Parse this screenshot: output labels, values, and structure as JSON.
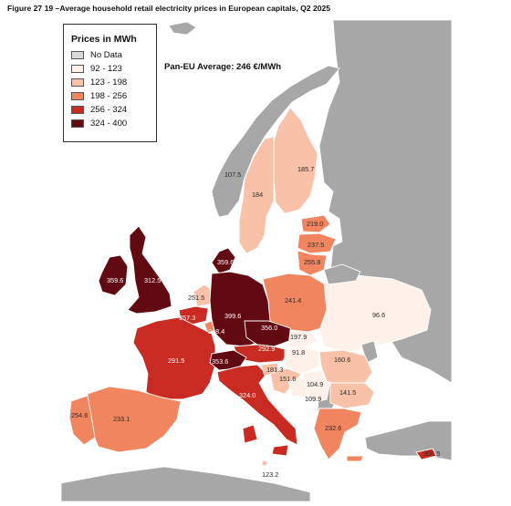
{
  "figure": {
    "title": "Figure 27 19 –Average household retail electricity prices in European capitals, Q2 2025"
  },
  "map": {
    "average_label": "Pan-EU Average: 246 €/MWh",
    "colors": {
      "no_data": "#d9d9d9",
      "band_1": "#fdf1ea",
      "band_2": "#f9c2a8",
      "band_3": "#f0855f",
      "band_4": "#c92b22",
      "band_5": "#620a12",
      "non_eu_land": "#a7a7a7",
      "sea": "#ffffff"
    }
  },
  "legend": {
    "title": "Prices in MWh",
    "items": [
      {
        "label": "No Data",
        "color": "#d9d9d9"
      },
      {
        "label": "92 - 123",
        "color": "#fdf1ea"
      },
      {
        "label": "123 - 198",
        "color": "#f9c2a8"
      },
      {
        "label": "198 - 256",
        "color": "#f0855f"
      },
      {
        "label": "256 - 324",
        "color": "#c92b22"
      },
      {
        "label": "324 - 400",
        "color": "#620a12"
      }
    ]
  },
  "values": {
    "ireland": "359.6",
    "great_britain": "312.5",
    "denmark": "359.6",
    "norway": "107.5",
    "sweden": "184",
    "finland": "185.7",
    "estonia": "219.0",
    "latvia": "237.5",
    "lithuania": "255.8",
    "netherlands": "251.5",
    "belgium": "357.3",
    "luxembourg": "248.4",
    "germany": "399.6",
    "poland": "241.4",
    "czechia": "356.0",
    "austria": "292.9",
    "slovakia": "197.9",
    "hungary": "91.8",
    "ukraine": "96.6",
    "france": "291.5",
    "switzerland": "353.6",
    "slovenia": "181.3",
    "croatia": "151.6",
    "bosnia": "104.9",
    "serbia": "109.9",
    "romania": "160.6",
    "bulgaria": "141.5",
    "italy": "324.0",
    "spain": "233.1",
    "portugal": "254.6",
    "greece": "232.6",
    "malta": "123.2",
    "cyprus": "300.5"
  }
}
